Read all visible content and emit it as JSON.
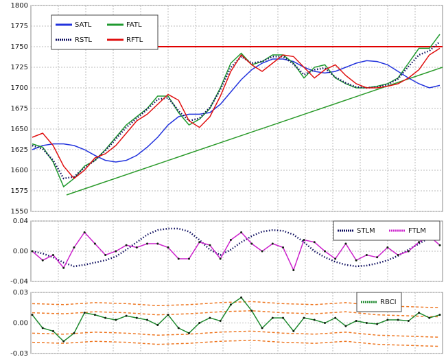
{
  "chart_data": [
    {
      "type": "line",
      "ylim": [
        1550,
        1800
      ],
      "yticks": [
        1550,
        1575,
        1600,
        1625,
        1650,
        1675,
        1700,
        1725,
        1750,
        1775,
        1800
      ],
      "grid": true,
      "legend": "top-left",
      "hline": {
        "value": 1750,
        "color": "#e00000"
      },
      "trendline": {
        "values": [
          1570,
          1725
        ],
        "color": "#2a9a2a"
      },
      "series": [
        {
          "name": "SATL",
          "color": "#2233dd",
          "style": "solid",
          "values": [
            1625,
            1630,
            1632,
            1632,
            1630,
            1625,
            1618,
            1612,
            1610,
            1612,
            1618,
            1628,
            1640,
            1655,
            1665,
            1668,
            1668,
            1670,
            1680,
            1695,
            1710,
            1722,
            1730,
            1735,
            1735,
            1732,
            1725,
            1720,
            1718,
            1720,
            1725,
            1730,
            1733,
            1732,
            1728,
            1720,
            1712,
            1705,
            1700,
            1703
          ]
        },
        {
          "name": "FATL",
          "color": "#1f9a2f",
          "style": "solid",
          "values": [
            1632,
            1628,
            1610,
            1580,
            1590,
            1605,
            1612,
            1625,
            1640,
            1655,
            1665,
            1675,
            1690,
            1690,
            1670,
            1655,
            1662,
            1675,
            1700,
            1730,
            1742,
            1728,
            1732,
            1740,
            1740,
            1730,
            1712,
            1725,
            1728,
            1712,
            1705,
            1700,
            1700,
            1702,
            1705,
            1712,
            1730,
            1748,
            1748,
            1765
          ]
        },
        {
          "name": "RSTL",
          "color": "#101060",
          "style": "dotted",
          "values": [
            1630,
            1626,
            1612,
            1590,
            1592,
            1603,
            1612,
            1624,
            1638,
            1652,
            1663,
            1674,
            1686,
            1688,
            1672,
            1660,
            1663,
            1676,
            1698,
            1725,
            1738,
            1730,
            1732,
            1738,
            1738,
            1729,
            1716,
            1722,
            1724,
            1713,
            1706,
            1701,
            1700,
            1701,
            1704,
            1711,
            1726,
            1740,
            1745,
            1756
          ]
        },
        {
          "name": "RFTL",
          "color": "#e01010",
          "style": "solid",
          "values": [
            1640,
            1645,
            1630,
            1605,
            1590,
            1600,
            1615,
            1620,
            1630,
            1645,
            1660,
            1668,
            1680,
            1692,
            1685,
            1660,
            1652,
            1665,
            1690,
            1720,
            1740,
            1728,
            1720,
            1730,
            1740,
            1738,
            1725,
            1712,
            1722,
            1728,
            1715,
            1705,
            1700,
            1700,
            1702,
            1705,
            1712,
            1722,
            1740,
            1748
          ]
        }
      ]
    },
    {
      "type": "line",
      "ylim": [
        -0.04,
        0.04
      ],
      "yticks": [
        -0.04,
        {
          "value": 0,
          "label": "0.00"
        },
        0.04
      ],
      "grid": true,
      "legend": "top-right",
      "series": [
        {
          "name": "STLM",
          "color": "#101060",
          "style": "dotted",
          "values": [
            0,
            -0.003,
            -0.008,
            -0.015,
            -0.02,
            -0.018,
            -0.015,
            -0.012,
            -0.007,
            0.002,
            0.012,
            0.022,
            0.028,
            0.03,
            0.03,
            0.026,
            0.015,
            0.002,
            -0.005,
            0.002,
            0.012,
            0.02,
            0.026,
            0.028,
            0.027,
            0.022,
            0.012,
            0,
            -0.008,
            -0.014,
            -0.018,
            -0.02,
            -0.019,
            -0.016,
            -0.012,
            -0.006,
            0.002,
            0.01,
            0.018,
            0.024
          ]
        },
        {
          "name": "FTLM",
          "color": "#cc22cc",
          "style": "dotted-line",
          "values": [
            0,
            -0.012,
            -0.005,
            -0.022,
            0.005,
            0.025,
            0.01,
            -0.005,
            0,
            0.008,
            0.005,
            0.01,
            0.01,
            0.005,
            -0.01,
            -0.01,
            0.012,
            0.008,
            -0.01,
            0.015,
            0.025,
            0.01,
            0,
            0.01,
            0.005,
            -0.025,
            0.015,
            0.012,
            0,
            -0.01,
            0.01,
            -0.012,
            -0.005,
            -0.008,
            0.005,
            -0.005,
            0,
            0.012,
            0.02,
            0.008
          ]
        }
      ]
    },
    {
      "type": "line",
      "ylim": [
        -0.03,
        0.03
      ],
      "yticks": [
        -0.03,
        {
          "value": 0,
          "label": "0.00"
        },
        0.03
      ],
      "grid": true,
      "legend": "top-right",
      "bands": [
        {
          "color": "#ee7722",
          "values": [
            0.019,
            0.018,
            0.02,
            0.019,
            0.017,
            0.018,
            0.02,
            0.021,
            0.019,
            0.018,
            0.02,
            0.017,
            0.016,
            0.015
          ]
        },
        {
          "color": "#ee7722",
          "values": [
            0.01,
            0.009,
            0.011,
            0.01,
            0.008,
            0.009,
            0.011,
            0.012,
            0.01,
            0.009,
            0.011,
            0.008,
            0.007,
            0.006
          ]
        },
        {
          "color": "#ee7722",
          "values": [
            -0.01,
            -0.011,
            -0.009,
            -0.01,
            -0.012,
            -0.011,
            -0.009,
            -0.008,
            -0.01,
            -0.011,
            -0.009,
            -0.012,
            -0.013,
            -0.014
          ]
        },
        {
          "color": "#ee7722",
          "values": [
            -0.019,
            -0.02,
            -0.018,
            -0.019,
            -0.021,
            -0.02,
            -0.018,
            -0.017,
            -0.019,
            -0.02,
            -0.018,
            -0.021,
            -0.022,
            -0.023
          ]
        }
      ],
      "series": [
        {
          "name": "RBCI",
          "color": "#1f8a2f",
          "style": "dotted-line",
          "values": [
            0.008,
            -0.005,
            -0.008,
            -0.018,
            -0.01,
            0.01,
            0.008,
            0.005,
            0.003,
            0.007,
            0.005,
            0.003,
            -0.002,
            0.008,
            -0.005,
            -0.01,
            0,
            0.005,
            0.002,
            0.018,
            0.025,
            0.012,
            -0.005,
            0.005,
            0.005,
            -0.008,
            0.005,
            0.003,
            0,
            0.005,
            -0.003,
            0.002,
            0,
            -0.001,
            0.003,
            0.003,
            0.002,
            0.01,
            0.005,
            0.008
          ]
        }
      ]
    }
  ]
}
